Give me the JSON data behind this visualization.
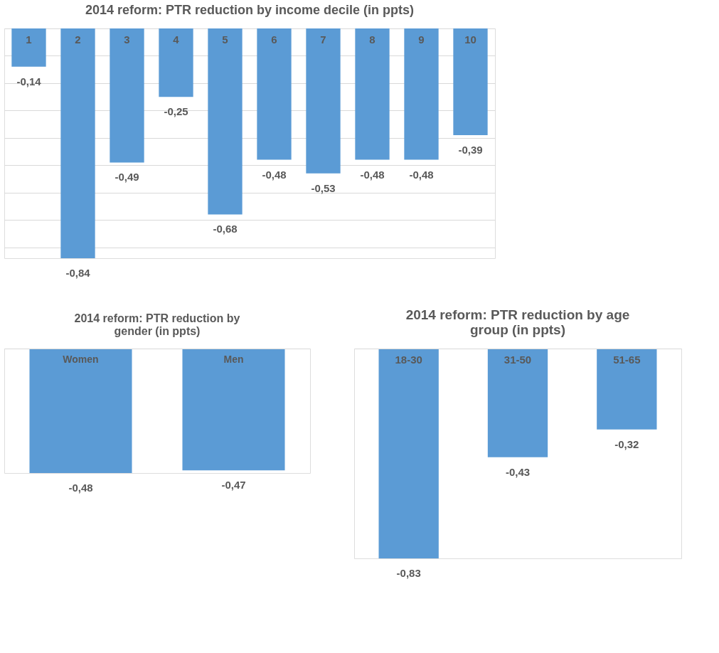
{
  "chart_data": [
    {
      "type": "bar",
      "title": "2014 reform: PTR reduction by income decile (in ppts)",
      "categories": [
        "1",
        "2",
        "3",
        "4",
        "5",
        "6",
        "7",
        "8",
        "9",
        "10"
      ],
      "values": [
        -0.14,
        -0.84,
        -0.49,
        -0.25,
        -0.68,
        -0.48,
        -0.53,
        -0.48,
        -0.48,
        -0.39
      ],
      "value_labels": [
        "-0,14",
        "-0,84",
        "-0,49",
        "-0,25",
        "-0,68",
        "-0,48",
        "-0,53",
        "-0,48",
        "-0,48",
        "-0,39"
      ],
      "color": "#5b9bd5",
      "grid": "y",
      "tick_labels": "x"
    },
    {
      "type": "bar",
      "title": "2014 reform: PTR reduction by gender (in ppts)",
      "categories": [
        "Women",
        "Men"
      ],
      "values": [
        -0.48,
        -0.47
      ],
      "value_labels": [
        "-0,48",
        "-0,47"
      ],
      "color": "#5b9bd5",
      "tick_labels": "x"
    },
    {
      "type": "bar",
      "title": "2014 reform: PTR reduction by age group (in ppts)",
      "categories": [
        "18-30",
        "31-50",
        "51-65"
      ],
      "values": [
        -0.83,
        -0.43,
        -0.32
      ],
      "value_labels": [
        "-0,83",
        "-0,43",
        "-0,32"
      ],
      "color": "#5b9bd5",
      "tick_labels": "x"
    }
  ]
}
